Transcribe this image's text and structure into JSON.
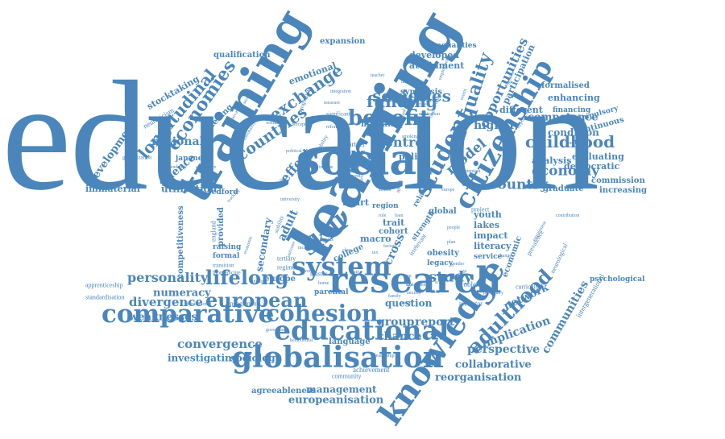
{
  "colors": {
    "ink": "#4a86bb",
    "background": "#ffffff"
  },
  "words": {
    "education": "education",
    "learning": "learning",
    "training": "training",
    "social": "social",
    "research": "research",
    "system": "system",
    "knowledge": "knowledge",
    "educational": "educational",
    "globalisation": "globalisation",
    "comparative": "comparative",
    "citizenship": "citizenship",
    "student": "student",
    "cohesion": "cohesion",
    "benefit": "benefit",
    "lifelong": "lifelong",
    "european": "european",
    "skill": "skill",
    "adulthood": "adulthood",
    "inequality": "inequality",
    "economies": "economies",
    "longitudinal": "longitudinal",
    "exchange": "exchange",
    "countries": "countries",
    "societies": "societies",
    "funding": "funding",
    "childhood": "childhood",
    "economy": "economy",
    "country": "country",
    "model": "model",
    "level": "level",
    "effect": "effect",
    "centre": "centre",
    "opportunities": "opportunities",
    "personality": "personality",
    "divergence": "divergence",
    "convergence": "convergence",
    "investigating": "investigating",
    "sociology": "sociology",
    "europeanisation": "europeanisation",
    "management": "management",
    "agreeableness": "agreeableness",
    "reorganisation": "reorganisation",
    "collaborative": "collaborative",
    "perspective": "perspective",
    "implication": "implication",
    "communities": "communities",
    "network": "network",
    "study": "study",
    "group": "group",
    "report": "report",
    "chance": "chance",
    "weaknesses": "weaknesses",
    "numeracy": "numeracy",
    "national": "national",
    "science": "science",
    "development": "development",
    "utilisation": "utilisation",
    "immaterial": "immaterial",
    "stocktaking": "stocktaking",
    "neuroticism": "neuroticism",
    "qualification": "qualification",
    "expansion": "expansion",
    "inequalities": "inequalities",
    "developed": "developed",
    "attainment": "attainment",
    "emotional": "emotional",
    "widening": "widening",
    "higher": "higher",
    "different": "different",
    "participation": "participation",
    "formalised": "formalised",
    "enhancing": "enhancing",
    "financing": "financing",
    "compulsory": "compulsory",
    "competence": "competence",
    "condition": "condition",
    "continuous": "continuous",
    "analysis": "analysis",
    "evaluating": "evaluating",
    "democratic": "democratic",
    "commission": "commission",
    "graduate": "graduate",
    "increasing": "increasing",
    "psychological": "psychological",
    "intergenerational": "intergenerational",
    "apprenticeship": "apprenticeship",
    "standardisation": "standardisation",
    "secondary": "secondary",
    "adult": "adult",
    "cross": "cross",
    "migraine": "migraine",
    "synthesis": "synthesis",
    "policy": "policy",
    "relation": "relation",
    "heart": "heart",
    "trait": "trait",
    "cohort": "cohort",
    "macro": "macro",
    "youth": "youth",
    "lakes": "lakes",
    "impact": "impact",
    "literacy": "literacy",
    "service": "service",
    "economic": "economic",
    "obesity": "obesity",
    "legacy": "legacy",
    "question": "question",
    "language": "language",
    "europe": "europe",
    "master": "master",
    "college": "college",
    "upper": "upper",
    "life": "life",
    "parental": "parental",
    "achievement": "achievement",
    "community": "community",
    "region": "region",
    "global": "global",
    "strength": "strength",
    "irrelevant": "irrelevant",
    "project": "project",
    "curriculum": "curriculum",
    "prevalence": "prevalence",
    "neurological": "neurological",
    "problem": "problem",
    "predictor": "predictor",
    "competitiveness": "competitiveness",
    "england": "england",
    "provided": "provided",
    "raising": "raising",
    "formal": "formal",
    "redford": "redford",
    "transition": "transition",
    "biomedicine": "biomedicine",
    "japanese": "japanese",
    "globalization": "globalization",
    "engagement": "engagement",
    "distributional": "distributional",
    "kingdom": "kingdom",
    "regime": "regime",
    "tertiary": "tertiary",
    "significant": "significant",
    "perception": "perception",
    "political": "political",
    "market": "market",
    "mobility": "mobility",
    "partner": "partner",
    "current": "current",
    "pension": "pension",
    "smoking": "smoking",
    "gender": "gender",
    "sample": "sample",
    "framework": "framework",
    "stability": "stability",
    "mean": "mean",
    "alternative": "alternative",
    "dependency": "dependency",
    "nationality": "nationality",
    "programme": "programme",
    "integration": "integration",
    "fixed": "fixed",
    "motivation": "motivation",
    "content": "content",
    "change": "change",
    "factor": "factor",
    "nonliberal": "non-liberal",
    "nurse": "nurse",
    "gap": "gap",
    "role": "role",
    "loan": "loan",
    "tax": "tax",
    "young": "young",
    "age": "age",
    "home": "home",
    "labour": "labour",
    "variable": "variable",
    "intention": "intention",
    "impairment": "impairment",
    "cognitive": "cognitive",
    "health": "health",
    "work": "work",
    "reform": "reform",
    "access": "access",
    "extent": "extent",
    "plan": "plan",
    "scale": "scale",
    "data": "data",
    "contribution": "contribution",
    "competency": "competency",
    "leadership": "leadership",
    "school": "school",
    "ageing": "ageing",
    "outcome": "outcome",
    "lower": "lower",
    "status": "status",
    "state": "state",
    "role2": "role",
    "class": "class",
    "psychiatry": "psychiatry",
    "university": "university",
    "economic2": "economic",
    "tracking": "tracking",
    "vocational": "vocational",
    "europe2": "europe",
    "behavioural": "behavioural",
    "government": "government",
    "family": "family",
    "income": "income",
    "hypothesis": "hypothesis",
    "effect2": "effect",
    "employment": "employment",
    "teacher": "teacher",
    "measure": "measure",
    "sector": "sector",
    "private": "private",
    "welfare": "welfare",
    "people": "people",
    "inclusion": "inclusion",
    "anxiety": "anxiety",
    "wage": "wage"
  }
}
